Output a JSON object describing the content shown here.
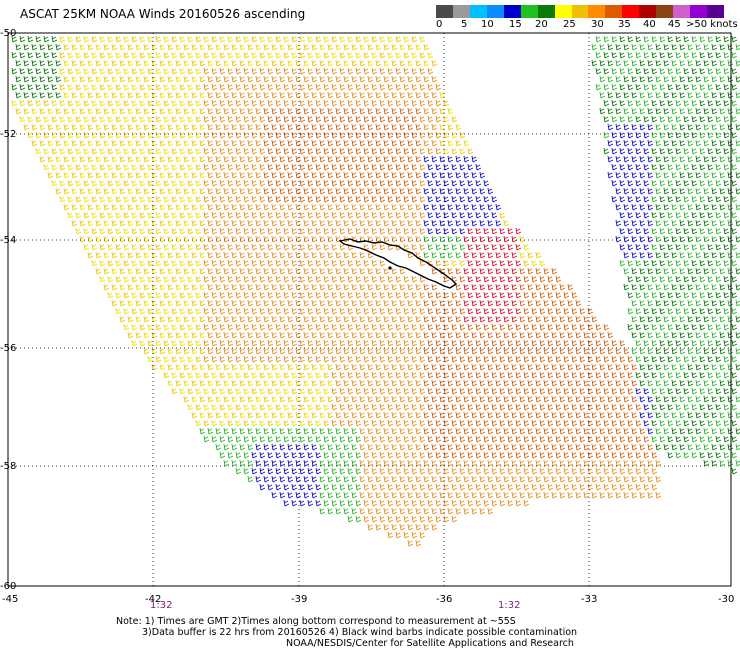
{
  "title": "ASCAT 25KM NOAA Winds 20160526 ascending",
  "colorbar": {
    "colors": [
      "#4a4a4a",
      "#9a9a9a",
      "#00bfff",
      "#0a8cff",
      "#0000cd",
      "#20c020",
      "#0a7a0a",
      "#ffff00",
      "#f0c000",
      "#ff8c00",
      "#e05a00",
      "#ff0000",
      "#b00000",
      "#8b4513",
      "#d060d0",
      "#9400d3",
      "#5a0090"
    ],
    "labels": [
      "0",
      "5",
      "10",
      "15",
      "20",
      "25",
      "30",
      "35",
      "40",
      "45",
      ">50 knots"
    ]
  },
  "axes": {
    "lat_labels": [
      "-50",
      "-52",
      "-54",
      "-56",
      "-58",
      "-60"
    ],
    "lon_labels": [
      "-45",
      "-42",
      "-39",
      "-36",
      "-33",
      "-30"
    ],
    "time_labels": [
      "1:32",
      "1:32"
    ]
  },
  "notes": [
    "Note: 1) Times are GMT 2)Times along bottom correspond to measurement at ~55S",
    "3)Data buffer is 22 hrs from 20160526 4) Black wind barbs indicate possible contamination",
    "NOAA/NESDIS/Center for Satellite Applications and Research"
  ],
  "wind_colors": {
    "yellow": "#e8e000",
    "gold": "#f0c000",
    "orange": "#e8901a",
    "dark_orange": "#d96010",
    "red": "#d81030",
    "green": "#28b828",
    "dark_green": "#0a7a0a",
    "blue": "#1010c8",
    "land": "#000000"
  }
}
